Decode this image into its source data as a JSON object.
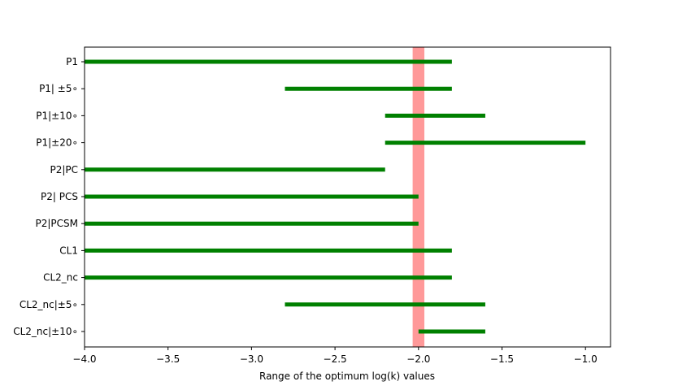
{
  "chart_data": {
    "type": "range-bar",
    "orientation": "horizontal",
    "title": "",
    "xlabel": "Range of the optimum log(k) values",
    "ylabel": "",
    "xlim": [
      -4.0,
      -0.85
    ],
    "xticks": [
      -4.0,
      -3.5,
      -3.0,
      -2.5,
      -2.0,
      -1.5,
      -1.0
    ],
    "xtick_labels": [
      "−4.0",
      "−3.5",
      "−3.0",
      "−2.5",
      "−2.0",
      "−1.5",
      "−1.0"
    ],
    "grid": false,
    "legend": null,
    "bar_color": "#008000",
    "highlight": {
      "x": -2.0,
      "half_width": 0.035,
      "color": "#ff9999"
    },
    "categories": [
      "P1",
      "P1| ±5∘",
      "P1|±10∘",
      "P1|±20∘",
      "P2|PC",
      "P2| PCS",
      "P2|PCSM",
      "CL1",
      "CL2_nc",
      "CL2_nc|±5∘",
      "CL2_nc|±10∘"
    ],
    "ranges": [
      [
        -4.0,
        -1.8
      ],
      [
        -2.8,
        -1.8
      ],
      [
        -2.2,
        -1.6
      ],
      [
        -2.2,
        -1.0
      ],
      [
        -4.0,
        -2.2
      ],
      [
        -4.0,
        -2.0
      ],
      [
        -4.0,
        -2.0
      ],
      [
        -4.0,
        -1.8
      ],
      [
        -4.0,
        -1.8
      ],
      [
        -2.8,
        -1.6
      ],
      [
        -2.0,
        -1.6
      ]
    ]
  }
}
